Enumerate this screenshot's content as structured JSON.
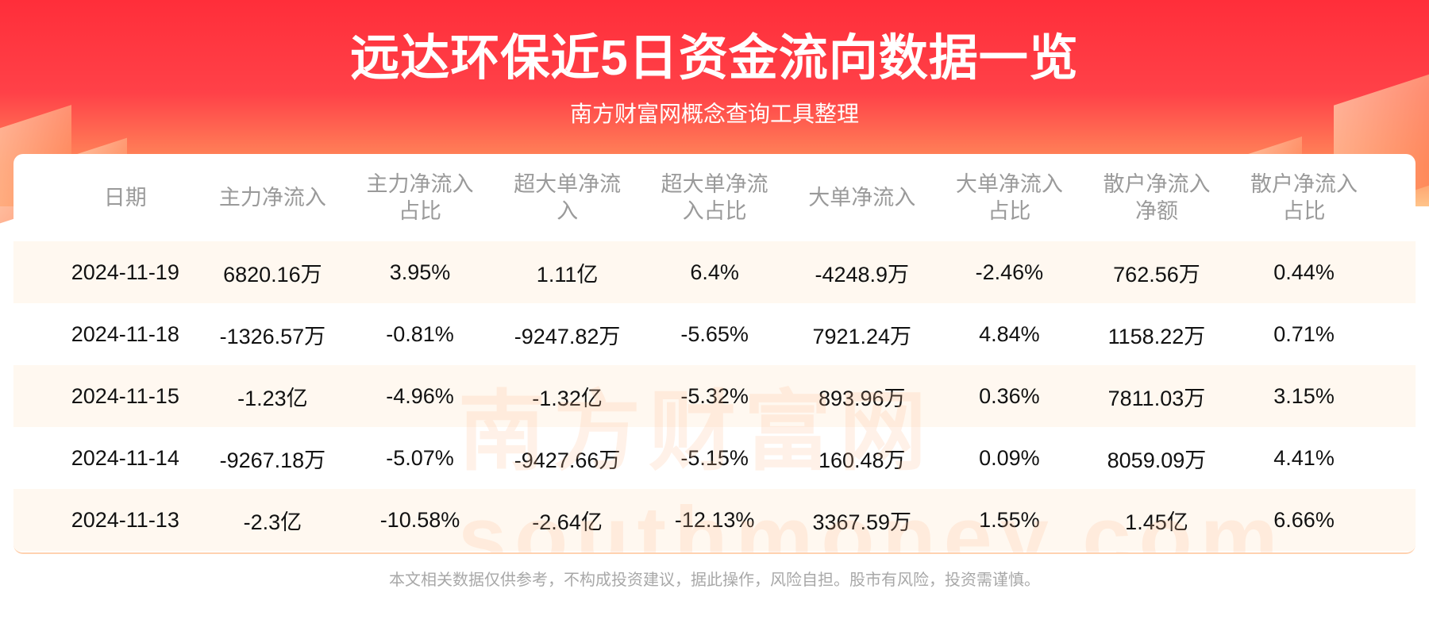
{
  "header": {
    "title": "远达环保近5日资金流向数据一览",
    "subtitle": "南方财富网概念查询工具整理"
  },
  "watermark": "南方财富网 southmoney.com",
  "table": {
    "columns": [
      "日期",
      "主力净流入",
      "主力净流入占比",
      "超大单净流入",
      "超大单净流入占比",
      "大单净流入",
      "大单净流入占比",
      "散户净流入净额",
      "散户净流入占比"
    ],
    "rows": [
      [
        "2024-11-19",
        "6820.16万",
        "3.95%",
        "1.11亿",
        "6.4%",
        "-4248.9万",
        "-2.46%",
        "762.56万",
        "0.44%"
      ],
      [
        "2024-11-18",
        "-1326.57万",
        "-0.81%",
        "-9247.82万",
        "-5.65%",
        "7921.24万",
        "4.84%",
        "1158.22万",
        "0.71%"
      ],
      [
        "2024-11-15",
        "-1.23亿",
        "-4.96%",
        "-1.32亿",
        "-5.32%",
        "893.96万",
        "0.36%",
        "7811.03万",
        "3.15%"
      ],
      [
        "2024-11-14",
        "-9267.18万",
        "-5.07%",
        "-9427.66万",
        "-5.15%",
        "160.48万",
        "0.09%",
        "8059.09万",
        "4.41%"
      ],
      [
        "2024-11-13",
        "-2.3亿",
        "-10.58%",
        "-2.64亿",
        "-12.13%",
        "3367.59万",
        "1.55%",
        "1.45亿",
        "6.66%"
      ]
    ]
  },
  "footer": "本文相关数据仅供参考，不构成投资建议，据此操作，风险自担。股市有风险，投资需谨慎。",
  "colors": {
    "header_red": "#ff2e3a",
    "row_alt": "#fff8f0",
    "header_text": "#9a9a9a"
  }
}
